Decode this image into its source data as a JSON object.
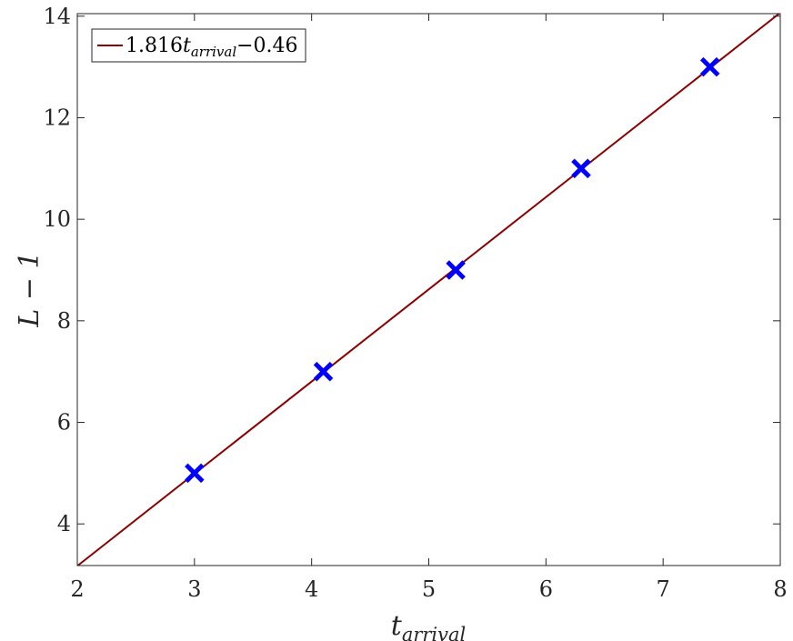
{
  "chart_data": {
    "type": "scatter",
    "x": [
      3.0,
      4.1,
      5.23,
      6.3,
      7.4
    ],
    "series": [
      {
        "values": [
          5,
          7,
          9,
          11,
          13
        ],
        "marker": "x",
        "color": "#0000ff"
      }
    ],
    "fit_line": {
      "slope": 1.816,
      "intercept": -0.46,
      "color": "#8b0000",
      "label": {
        "coef": "1.816",
        "var": "t",
        "sub": "arrival",
        "rest": "−0.46"
      }
    },
    "xlabel": {
      "base": "t",
      "sub": "arrival"
    },
    "ylabel": "L − 1",
    "xlim": [
      2,
      8
    ],
    "ylim": [
      3.18,
      14.05
    ],
    "xticks": [
      2,
      3,
      4,
      5,
      6,
      7,
      8
    ],
    "yticks": [
      4,
      6,
      8,
      10,
      12,
      14
    ],
    "grid": false,
    "legend_position": "top-left"
  }
}
